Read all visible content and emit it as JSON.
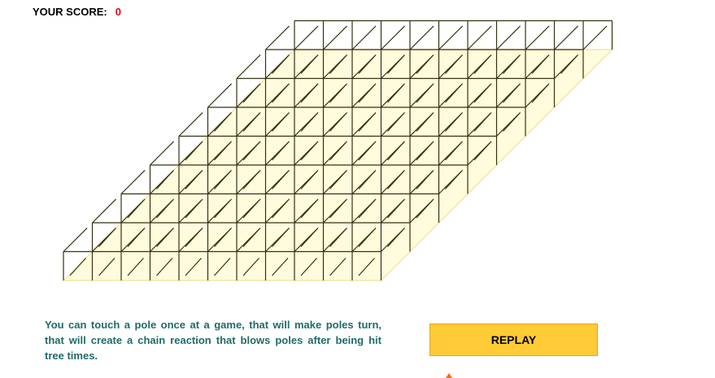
{
  "score": {
    "label": "YOUR SCORE:",
    "value": "0"
  },
  "board": {
    "base_rows": 8,
    "base_cols": 11,
    "pole_heights": [
      [
        1,
        1,
        1,
        1,
        1,
        1,
        1,
        1,
        1,
        1,
        1
      ],
      [
        1,
        1,
        1,
        1,
        1,
        1,
        1,
        1,
        1,
        1,
        1
      ],
      [
        1,
        1,
        1,
        1,
        1,
        1,
        1,
        1,
        1,
        1,
        1
      ],
      [
        1,
        1,
        1,
        1,
        1,
        1,
        1,
        1,
        1,
        1,
        1
      ],
      [
        1,
        1,
        1,
        1,
        1,
        1,
        1,
        1,
        1,
        1,
        1
      ],
      [
        1,
        1,
        1,
        1,
        1,
        1,
        1,
        1,
        1,
        1,
        1
      ],
      [
        1,
        1,
        1,
        1,
        1,
        1,
        1,
        1,
        1,
        1,
        1
      ],
      [
        1,
        1,
        1,
        1,
        1,
        1,
        1,
        1,
        1,
        1,
        1
      ]
    ],
    "colors": {
      "board_fill": "#fffbdd",
      "board_edge": "#f2e7a6",
      "pole": "#333311"
    }
  },
  "instructions": "You can touch a pole once at a game, that will make poles turn, that will create a chain reaction that blows poles after being hit tree times.",
  "replay_button": {
    "label": "REPLAY"
  },
  "colors": {
    "score_value": "#e0001b",
    "instructions_text": "#1f6b6b",
    "replay_bg": "#ffcb36"
  }
}
